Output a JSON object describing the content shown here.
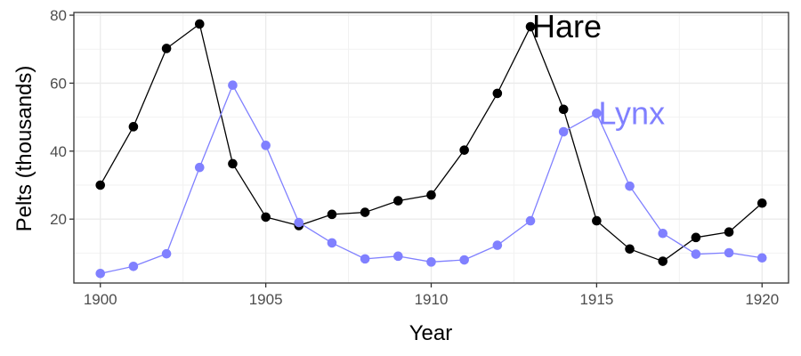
{
  "chart_data": {
    "type": "line",
    "title": "",
    "xlabel": "Year",
    "ylabel": "Pelts (thousands)",
    "xlim": [
      1899.2,
      1920.8
    ],
    "ylim": [
      1.2,
      80.8
    ],
    "x_ticks": [
      1900,
      1905,
      1910,
      1915,
      1920
    ],
    "x_tick_labels": [
      "1900",
      "1905",
      "1910",
      "1915",
      "1920"
    ],
    "y_ticks": [
      20,
      40,
      60,
      80
    ],
    "y_tick_labels": [
      "20",
      "40",
      "60",
      "80"
    ],
    "x_minor_ticks": [
      1902.5,
      1907.5,
      1912.5,
      1917.5
    ],
    "y_minor_ticks": [
      10,
      30,
      50,
      70
    ],
    "grid": true,
    "legend": "none",
    "x": [
      1900,
      1901,
      1902,
      1903,
      1904,
      1905,
      1906,
      1907,
      1908,
      1909,
      1910,
      1911,
      1912,
      1913,
      1914,
      1915,
      1916,
      1917,
      1918,
      1919,
      1920
    ],
    "series": [
      {
        "name": "Hare",
        "color": "#000000",
        "values": [
          30,
          47.2,
          70.2,
          77.4,
          36.3,
          20.6,
          18.1,
          21.4,
          22,
          25.4,
          27.1,
          40.3,
          57,
          76.6,
          52.3,
          19.5,
          11.2,
          7.6,
          14.6,
          16.2,
          24.7
        ],
        "label_x": 1913
      },
      {
        "name": "Lynx",
        "color": "#8080ff",
        "values": [
          4,
          6.1,
          9.8,
          35.2,
          59.4,
          41.7,
          19,
          13,
          8.3,
          9.1,
          7.4,
          8,
          12.3,
          19.5,
          45.7,
          51.1,
          29.7,
          15.8,
          9.7,
          10.1,
          8.6
        ],
        "label_x": 1915
      }
    ]
  }
}
